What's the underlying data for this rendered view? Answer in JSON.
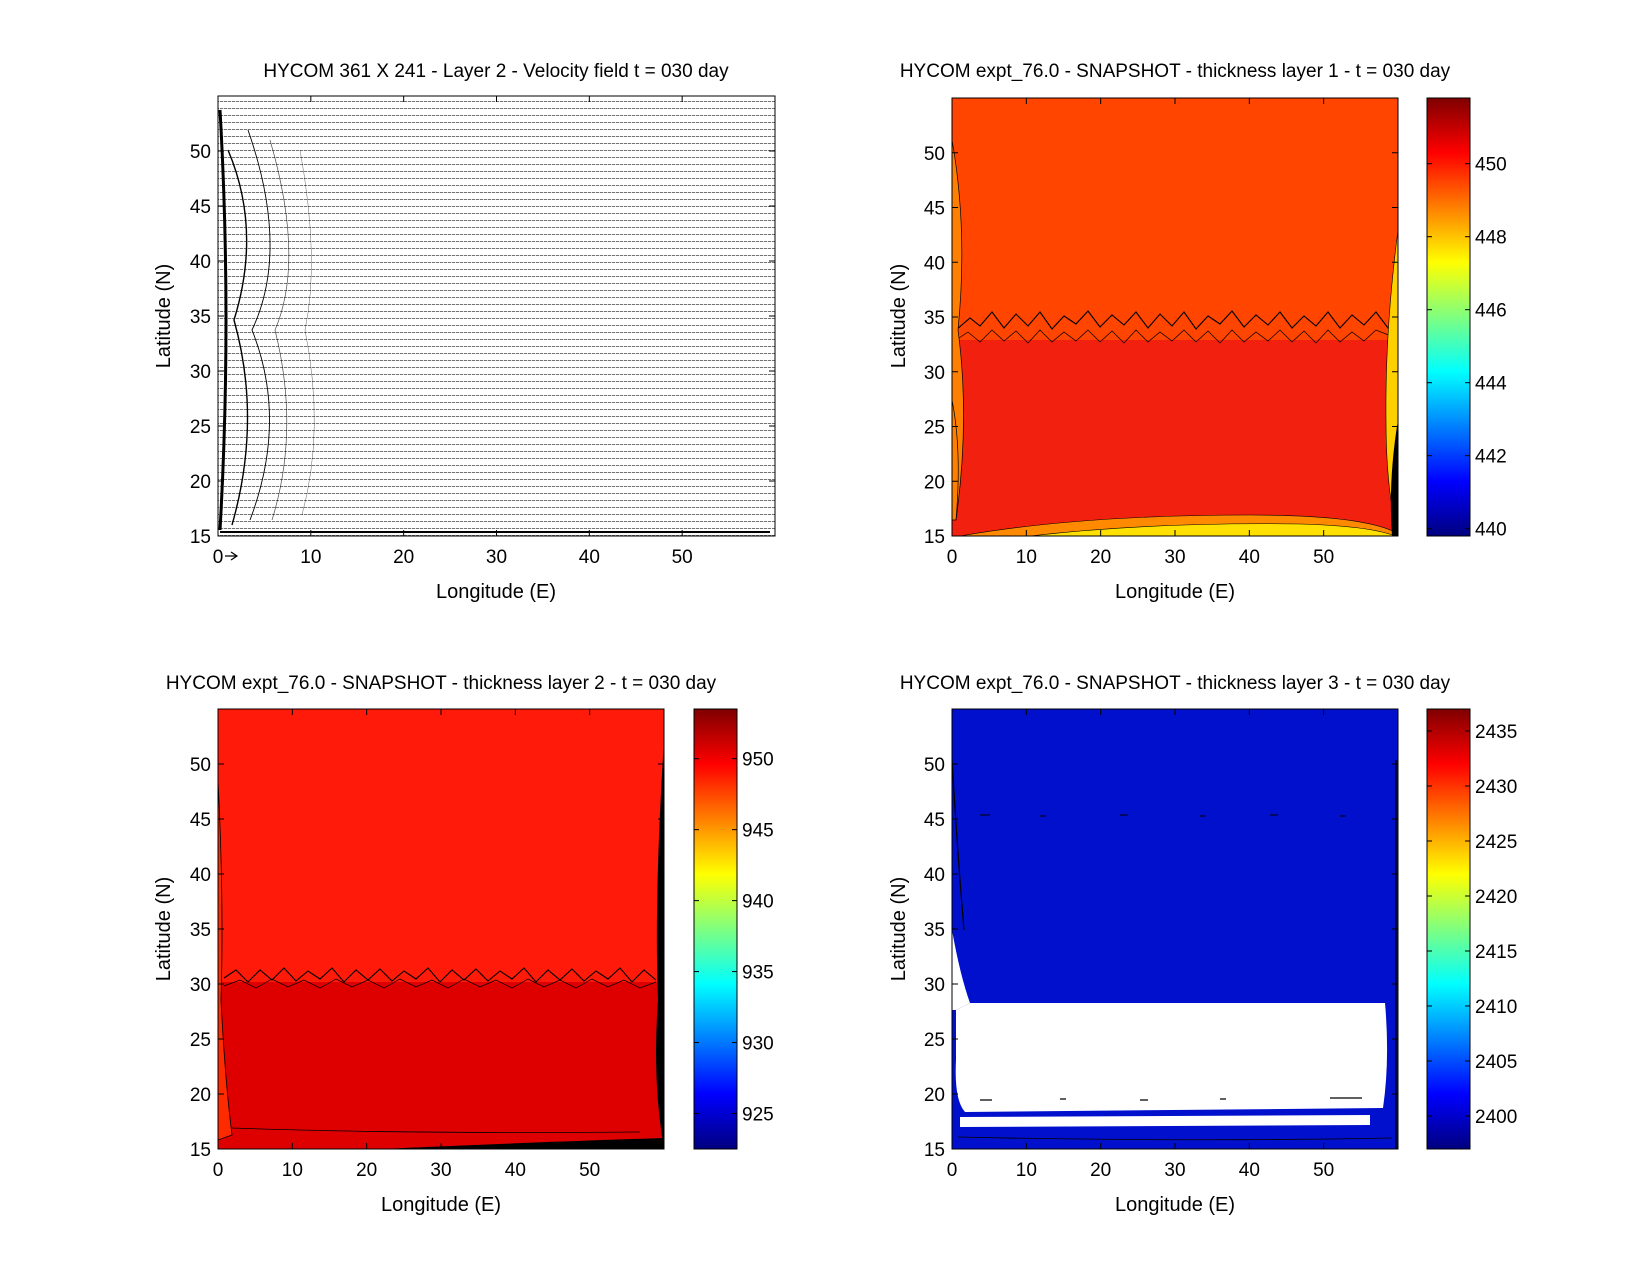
{
  "figure": {
    "background": "#ffffff"
  },
  "chart_data": [
    {
      "type": "quiver",
      "id": "velocity",
      "title": "HYCOM 361 X 241 - Layer 2 - Velocity field  t = 030 day",
      "xlabel": "Longitude (E)",
      "ylabel": "Latitude (N)",
      "xlim": [
        0,
        60
      ],
      "ylim": [
        15,
        55
      ],
      "xticks": [
        0,
        10,
        20,
        30,
        40,
        50
      ],
      "yticks": [
        15,
        20,
        25,
        30,
        35,
        40,
        45,
        50
      ],
      "grid": "361 X 241",
      "colorbar": null
    },
    {
      "type": "heatmap",
      "id": "layer1",
      "title": "HYCOM expt_76.0 - SNAPSHOT - thickness layer 1 - t = 030 day",
      "xlabel": "Longitude (E)",
      "ylabel": "Latitude (N)",
      "xlim": [
        0,
        60
      ],
      "ylim": [
        15,
        55
      ],
      "xticks": [
        0,
        10,
        20,
        30,
        40,
        50
      ],
      "yticks": [
        15,
        20,
        25,
        30,
        35,
        40,
        45,
        50
      ],
      "field": {
        "north_value": 450.7,
        "south_value": 451.2,
        "front_lat": 34,
        "land_color": "#000000"
      },
      "colorbar": {
        "min": 439.8,
        "max": 451.8,
        "ticks": [
          440,
          442,
          444,
          446,
          448,
          450
        ]
      }
    },
    {
      "type": "heatmap",
      "id": "layer2",
      "title": "HYCOM expt_76.0 - SNAPSHOT - thickness layer 2 - t = 030 day",
      "xlabel": "Longitude (E)",
      "ylabel": "Latitude (N)",
      "xlim": [
        0,
        60
      ],
      "ylim": [
        15,
        55
      ],
      "xticks": [
        0,
        10,
        20,
        30,
        40,
        50
      ],
      "yticks": [
        15,
        20,
        25,
        30,
        35,
        40,
        45,
        50
      ],
      "field": {
        "north_value": 950.5,
        "south_value": 952,
        "front_lat": 30.5,
        "land_color": "#000000"
      },
      "colorbar": {
        "min": 922.5,
        "max": 953.5,
        "ticks": [
          925,
          930,
          935,
          940,
          945,
          950
        ]
      }
    },
    {
      "type": "heatmap",
      "id": "layer3",
      "title": "HYCOM expt_76.0 - SNAPSHOT - thickness layer 3 - t = 030 day",
      "xlabel": "Longitude (E)",
      "ylabel": "Latitude (N)",
      "xlim": [
        0,
        60
      ],
      "ylim": [
        15,
        55
      ],
      "xticks": [
        0,
        10,
        20,
        30,
        40,
        50
      ],
      "yticks": [
        15,
        20,
        25,
        30,
        35,
        40,
        45,
        50
      ],
      "field": {
        "background_value": 2399.5,
        "missing_lat_range": [
          18.5,
          28
        ],
        "missing_color": "#ffffff"
      },
      "colorbar": {
        "min": 2397,
        "max": 2437,
        "ticks": [
          2400,
          2405,
          2410,
          2415,
          2420,
          2425,
          2430,
          2435
        ]
      }
    }
  ]
}
